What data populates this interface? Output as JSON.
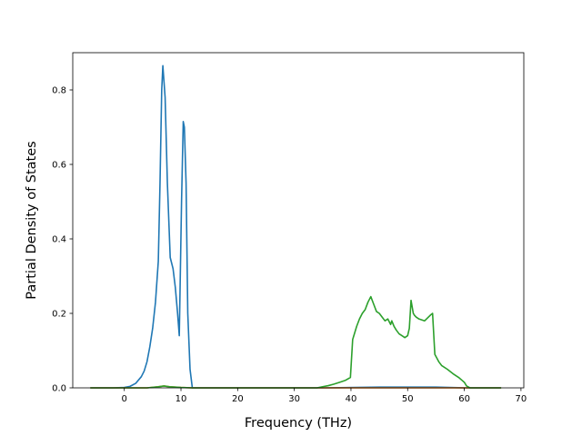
{
  "chart_data": {
    "type": "line",
    "xlabel": "Frequency (THz)",
    "ylabel": "Partial Density of States",
    "xlim": [
      -9.1,
      70.5
    ],
    "ylim": [
      0,
      0.9
    ],
    "x_ticks": [
      0,
      10,
      20,
      30,
      40,
      50,
      60,
      70
    ],
    "y_ticks": [
      0.0,
      0.2,
      0.4,
      0.6,
      0.8
    ],
    "x_tick_labels": [
      "0",
      "10",
      "20",
      "30",
      "40",
      "50",
      "60",
      "70"
    ],
    "y_tick_labels": [
      "0.0",
      "0.2",
      "0.4",
      "0.6",
      "0.8"
    ],
    "grid": false,
    "series": [
      {
        "color": "#1f77b4",
        "x": [
          -6,
          -2,
          0,
          1,
          2,
          3,
          3.5,
          4,
          4.5,
          5,
          5.5,
          6,
          6.3,
          6.6,
          6.8,
          7.2,
          7.6,
          8.1,
          8.6,
          9,
          9.4,
          9.7,
          10.1,
          10.4,
          10.6,
          10.9,
          11.2,
          11.6,
          12,
          15,
          25,
          35,
          45,
          55,
          60,
          66.5
        ],
        "values": [
          0,
          0,
          0.001,
          0.004,
          0.012,
          0.03,
          0.045,
          0.07,
          0.11,
          0.16,
          0.23,
          0.34,
          0.55,
          0.8,
          0.865,
          0.78,
          0.55,
          0.35,
          0.32,
          0.27,
          0.2,
          0.14,
          0.5,
          0.715,
          0.7,
          0.55,
          0.2,
          0.05,
          0,
          0,
          0,
          0,
          0.002,
          0.002,
          0,
          0
        ]
      },
      {
        "color": "#ff7f0e",
        "x": [
          -6,
          0,
          4,
          6,
          7,
          8,
          10,
          12,
          20,
          40,
          60,
          66.5
        ],
        "values": [
          0,
          0,
          0,
          0.003,
          0.005,
          0.003,
          0.001,
          0,
          0,
          0,
          0,
          0
        ]
      },
      {
        "color": "#2ca02c",
        "x": [
          -6,
          0,
          4,
          6,
          7,
          8,
          10,
          12,
          20,
          30,
          34,
          35,
          36,
          37,
          38,
          39,
          39.9,
          40.3,
          40.5,
          41,
          41.5,
          42,
          42.5,
          43,
          43.5,
          44,
          44.5,
          45,
          45.5,
          46,
          46.5,
          47,
          47.2,
          47.6,
          48,
          48.5,
          49,
          49.5,
          50,
          50.3,
          50.6,
          51,
          51.2,
          51.5,
          52,
          53,
          54,
          54.4,
          54.8,
          55.5,
          56,
          57,
          58,
          59,
          60,
          60.4,
          61,
          66.5
        ],
        "values": [
          0,
          0,
          0,
          0.003,
          0.005,
          0.003,
          0.001,
          0,
          0,
          0,
          0,
          0.003,
          0.006,
          0.01,
          0.015,
          0.02,
          0.028,
          0.13,
          0.14,
          0.165,
          0.185,
          0.2,
          0.21,
          0.23,
          0.245,
          0.225,
          0.205,
          0.2,
          0.19,
          0.18,
          0.185,
          0.17,
          0.18,
          0.165,
          0.155,
          0.145,
          0.14,
          0.135,
          0.14,
          0.16,
          0.235,
          0.2,
          0.195,
          0.19,
          0.185,
          0.18,
          0.195,
          0.2,
          0.09,
          0.07,
          0.06,
          0.05,
          0.038,
          0.028,
          0.015,
          0.005,
          0,
          0
        ]
      }
    ]
  }
}
